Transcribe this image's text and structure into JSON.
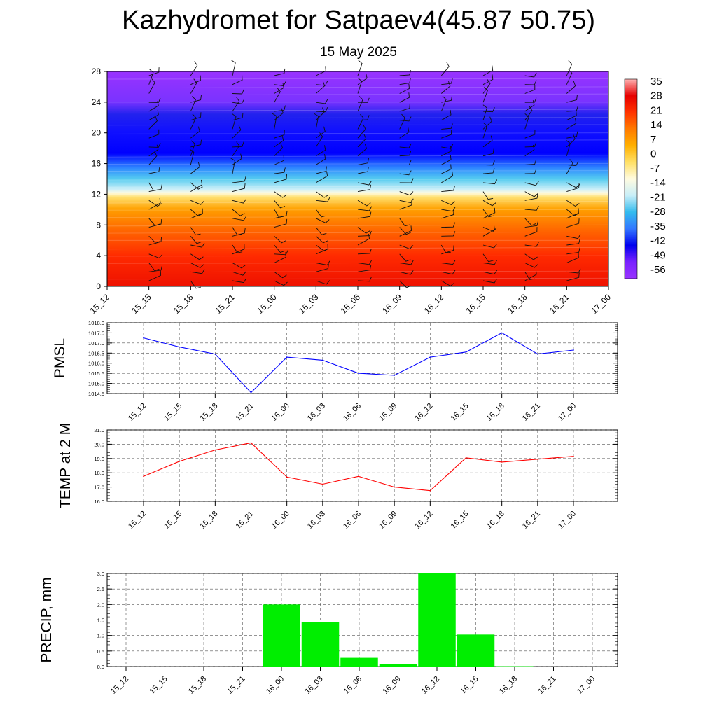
{
  "title": "Kazhydromet for Satpaev4(45.87 50.75)",
  "subtitle": "15 May 2025",
  "colors": {
    "pmsl_line": "#0000ff",
    "temp_line": "#ff0000",
    "precip_bar": "#00ee00",
    "colorbar_stops": [
      "#ffb3b3",
      "#e60000",
      "#ff3300",
      "#ff7a00",
      "#ffb000",
      "#ffe066",
      "#fffbe0",
      "#c8eef8",
      "#33bbee",
      "#3377ff",
      "#0000ee",
      "#7a22ff",
      "#9933ff"
    ]
  },
  "chart_data": [
    {
      "type": "heatmap",
      "name": "upper-air cross-section",
      "x": [
        "15_12",
        "15_15",
        "15_18",
        "15_21",
        "16_00",
        "16_03",
        "16_06",
        "16_09",
        "16_12",
        "16_15",
        "16_18",
        "16_21",
        "17_00"
      ],
      "yticks": [
        "0",
        "4",
        "8",
        "12",
        "16",
        "20",
        "24",
        "28"
      ],
      "ylim": [
        0,
        28
      ],
      "colorbar_labels": [
        "35",
        "28",
        "21",
        "14",
        "7",
        "0",
        "-7",
        "-14",
        "-21",
        "-28",
        "-35",
        "-42",
        "-49",
        "-56"
      ],
      "overlay": "wind barbs",
      "grid": false
    },
    {
      "type": "line",
      "ylabel": "PMSL",
      "x": [
        "15_12",
        "15_15",
        "15_18",
        "15_21",
        "16_00",
        "16_03",
        "16_06",
        "16_09",
        "16_12",
        "16_15",
        "16_18",
        "16_21",
        "17_00"
      ],
      "values": [
        1017.25,
        1016.8,
        1016.45,
        1014.55,
        1016.3,
        1016.15,
        1015.5,
        1015.4,
        1016.3,
        1016.55,
        1017.5,
        1016.45,
        1016.65
      ],
      "ylim": [
        1014.5,
        1018.0
      ],
      "yticks": [
        "1014.5",
        "1015.0",
        "1015.5",
        "1016.0",
        "1016.5",
        "1017.0",
        "1017.5",
        "1018.0"
      ],
      "grid": true
    },
    {
      "type": "line",
      "ylabel": "TEMP at 2 M",
      "x": [
        "15_12",
        "15_15",
        "15_18",
        "15_21",
        "16_00",
        "16_03",
        "16_06",
        "16_09",
        "16_12",
        "16_15",
        "16_18",
        "16_21",
        "17_00"
      ],
      "values": [
        17.75,
        18.8,
        19.6,
        20.1,
        17.7,
        17.2,
        17.75,
        17.0,
        16.75,
        19.05,
        18.75,
        18.95,
        19.15
      ],
      "ylim": [
        16.0,
        21.0
      ],
      "yticks": [
        "16.0",
        "17.0",
        "18.0",
        "19.0",
        "20.0",
        "21.0"
      ],
      "grid": true
    },
    {
      "type": "bar",
      "ylabel": "PRECIP, mm",
      "x": [
        "15_12",
        "15_15",
        "15_18",
        "15_21",
        "16_00",
        "16_03",
        "16_06",
        "16_09",
        "16_12",
        "16_15",
        "16_18",
        "16_21",
        "17_00"
      ],
      "values": [
        0,
        0,
        0,
        0,
        2.0,
        1.43,
        0.28,
        0.08,
        3.0,
        1.03,
        0.01,
        0,
        0
      ],
      "ylim": [
        0,
        3.0
      ],
      "yticks": [
        "0.0",
        "0.5",
        "1.0",
        "1.5",
        "2.0",
        "2.5",
        "3.0"
      ],
      "grid": true
    }
  ]
}
